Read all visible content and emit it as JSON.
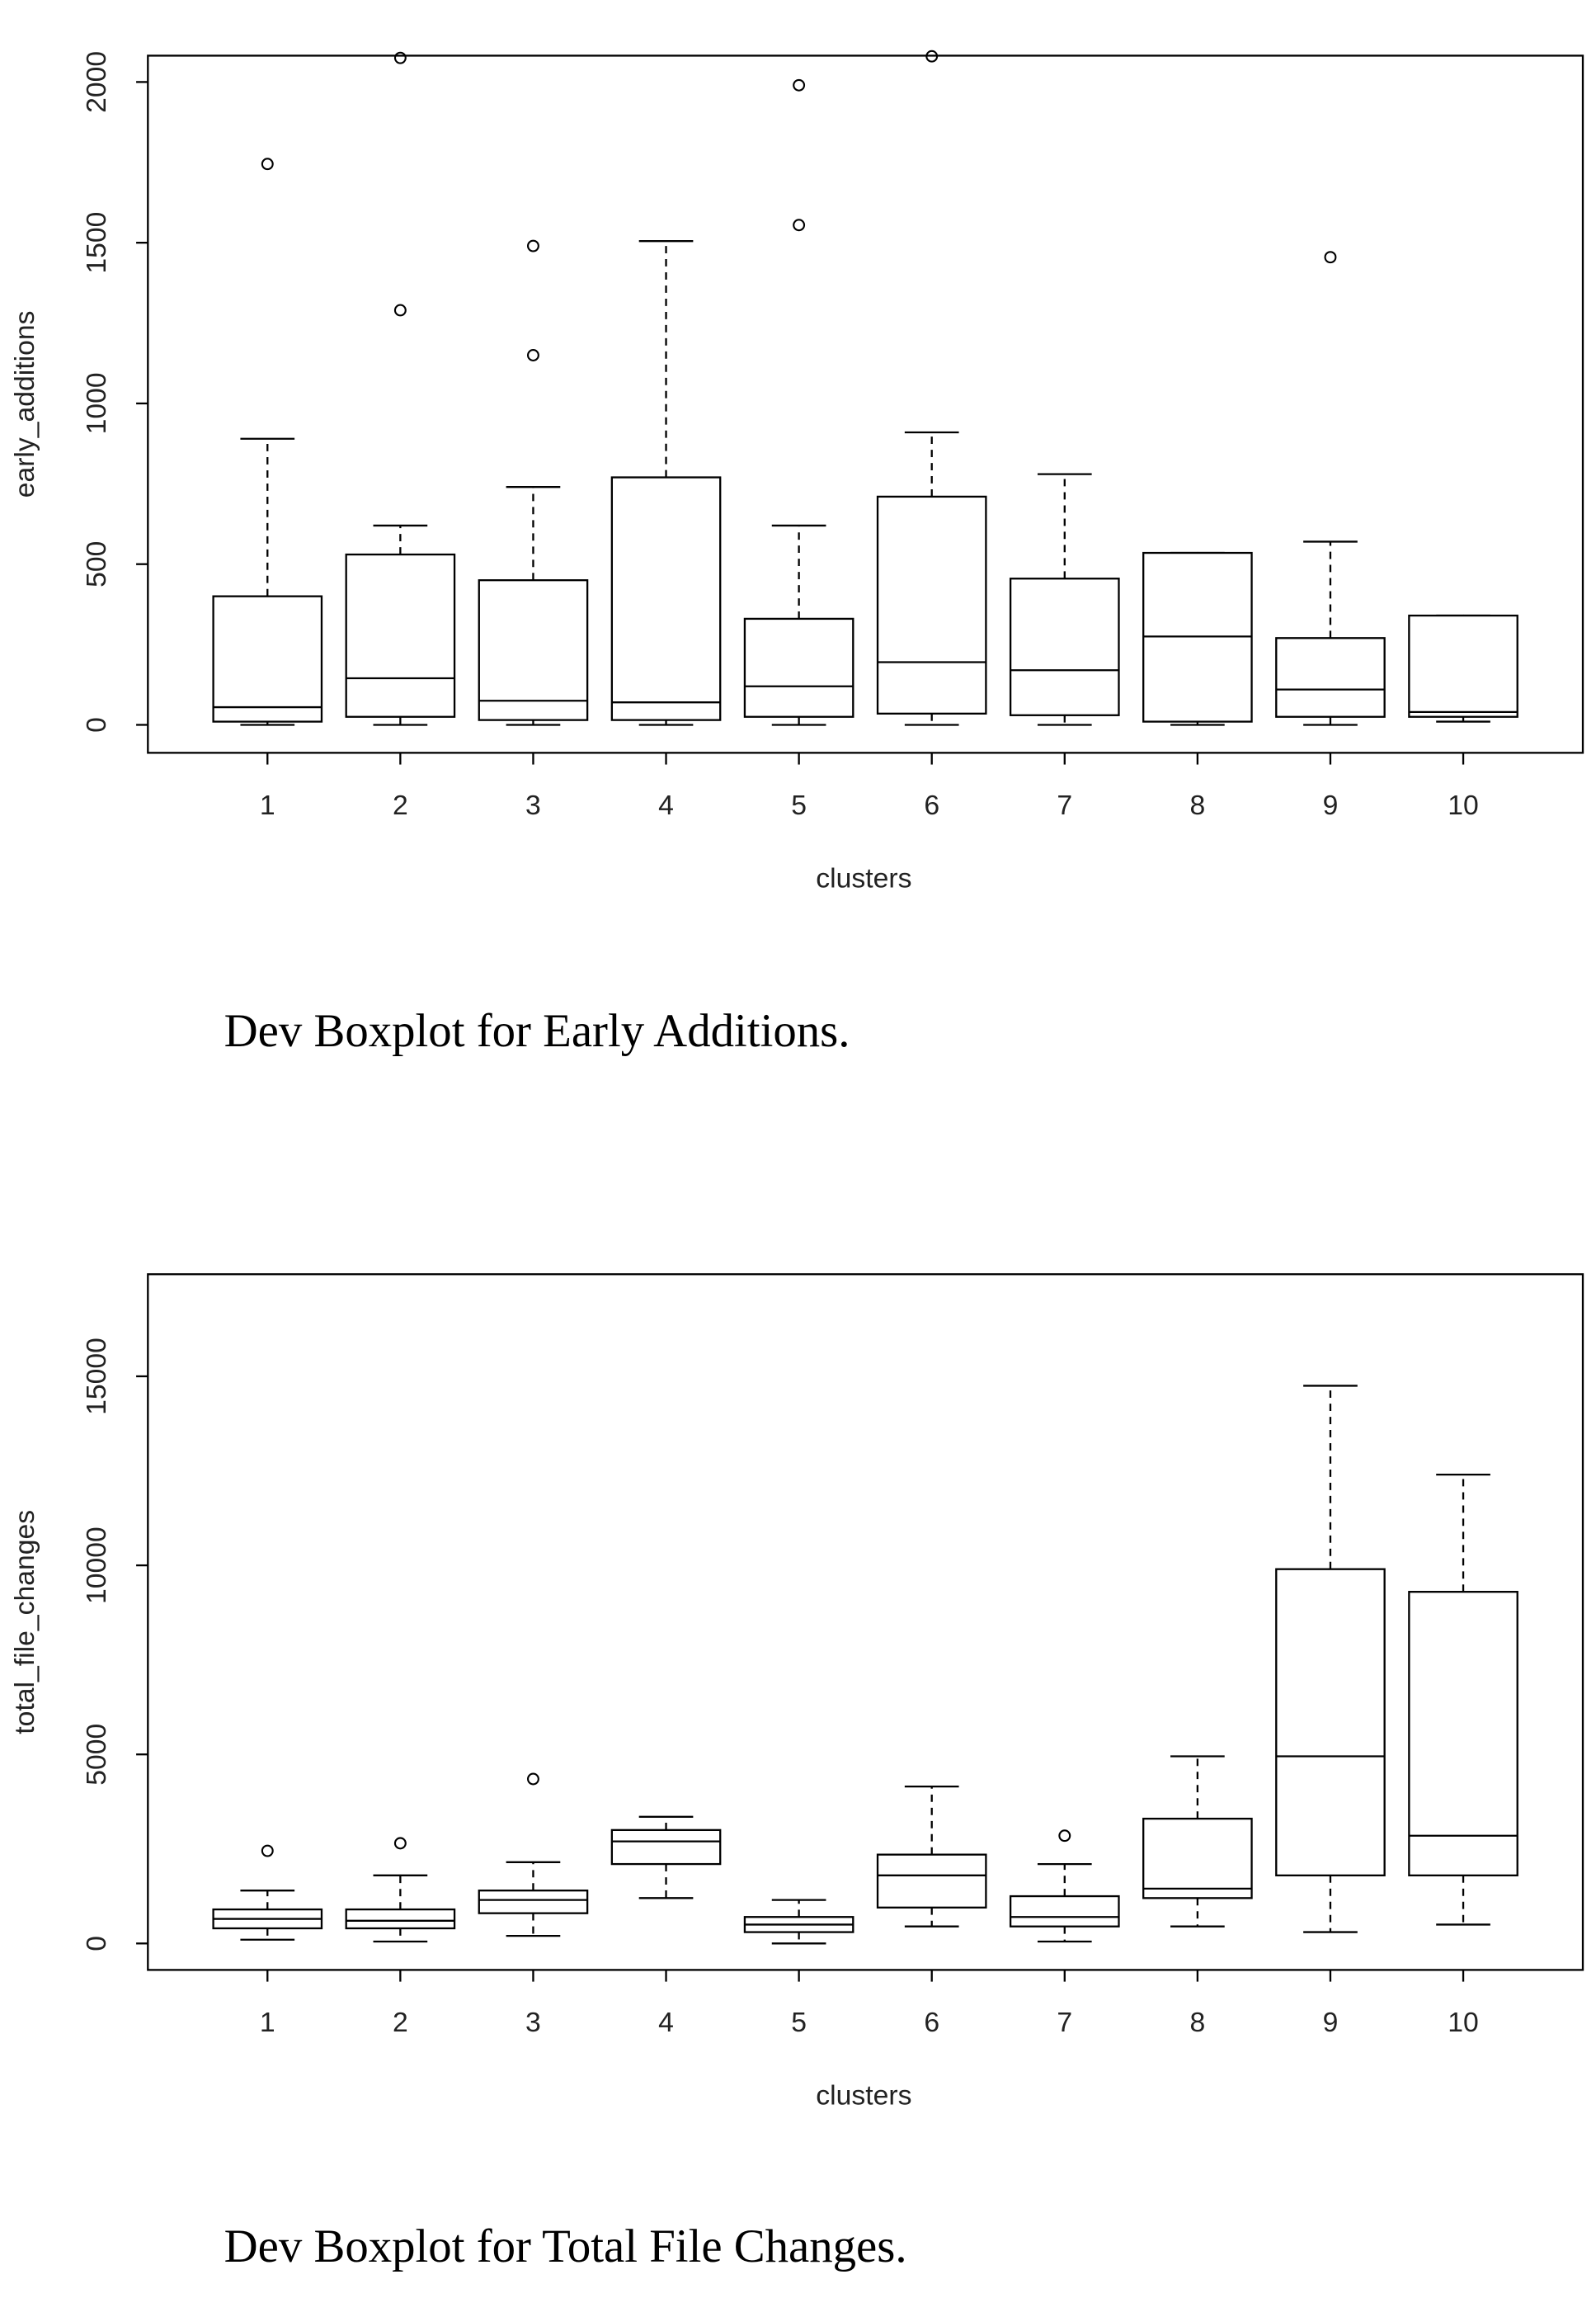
{
  "chart_data": [
    {
      "type": "box",
      "caption": "Dev Boxplot for Early Additions.",
      "y_label": "early_additions",
      "x_label": "clusters",
      "categories": [
        "1",
        "2",
        "3",
        "4",
        "5",
        "6",
        "7",
        "8",
        "9",
        "10"
      ],
      "whisker_low": [
        0,
        0,
        0,
        0,
        0,
        0,
        0,
        0,
        0,
        10
      ],
      "q1": [
        10,
        25,
        15,
        15,
        25,
        35,
        30,
        10,
        25,
        25
      ],
      "median": [
        55,
        145,
        75,
        70,
        120,
        195,
        170,
        275,
        110,
        40
      ],
      "q3": [
        400,
        530,
        450,
        770,
        330,
        710,
        455,
        535,
        270,
        340
      ],
      "whisker_high": [
        890,
        620,
        740,
        1505,
        620,
        910,
        780,
        535,
        570,
        340
      ],
      "outliers": [
        [
          1745
        ],
        [
          1290,
          2075
        ],
        [
          1150,
          1490
        ],
        [],
        [
          1555,
          1990
        ],
        [
          2080
        ],
        [],
        [],
        [
          1455
        ],
        []
      ],
      "ylim": [
        -87,
        2082
      ],
      "yticks": [
        0,
        500,
        1000,
        1500,
        2000
      ],
      "color": "#000000"
    },
    {
      "type": "box",
      "caption": "Dev Boxplot for Total File Changes.",
      "y_label": "total_file_changes",
      "x_label": "clusters",
      "categories": [
        "1",
        "2",
        "3",
        "4",
        "5",
        "6",
        "7",
        "8",
        "9",
        "10"
      ],
      "whisker_low": [
        100,
        50,
        200,
        1200,
        0,
        450,
        50,
        450,
        300,
        500
      ],
      "q1": [
        400,
        400,
        800,
        2100,
        300,
        950,
        450,
        1200,
        1800,
        1800
      ],
      "median": [
        650,
        600,
        1150,
        2700,
        500,
        1800,
        700,
        1450,
        4950,
        2850
      ],
      "q3": [
        900,
        900,
        1400,
        3000,
        700,
        2350,
        1250,
        3300,
        9900,
        9300
      ],
      "whisker_high": [
        1400,
        1800,
        2150,
        3350,
        1150,
        4150,
        2100,
        4950,
        14750,
        12400
      ],
      "outliers": [
        [
          2450
        ],
        [
          2650
        ],
        [
          4350
        ],
        [],
        [],
        [],
        [
          2850
        ],
        [],
        [],
        []
      ],
      "ylim": [
        -700,
        17700
      ],
      "yticks": [
        0,
        5000,
        10000,
        15000
      ],
      "color": "#000000"
    }
  ]
}
